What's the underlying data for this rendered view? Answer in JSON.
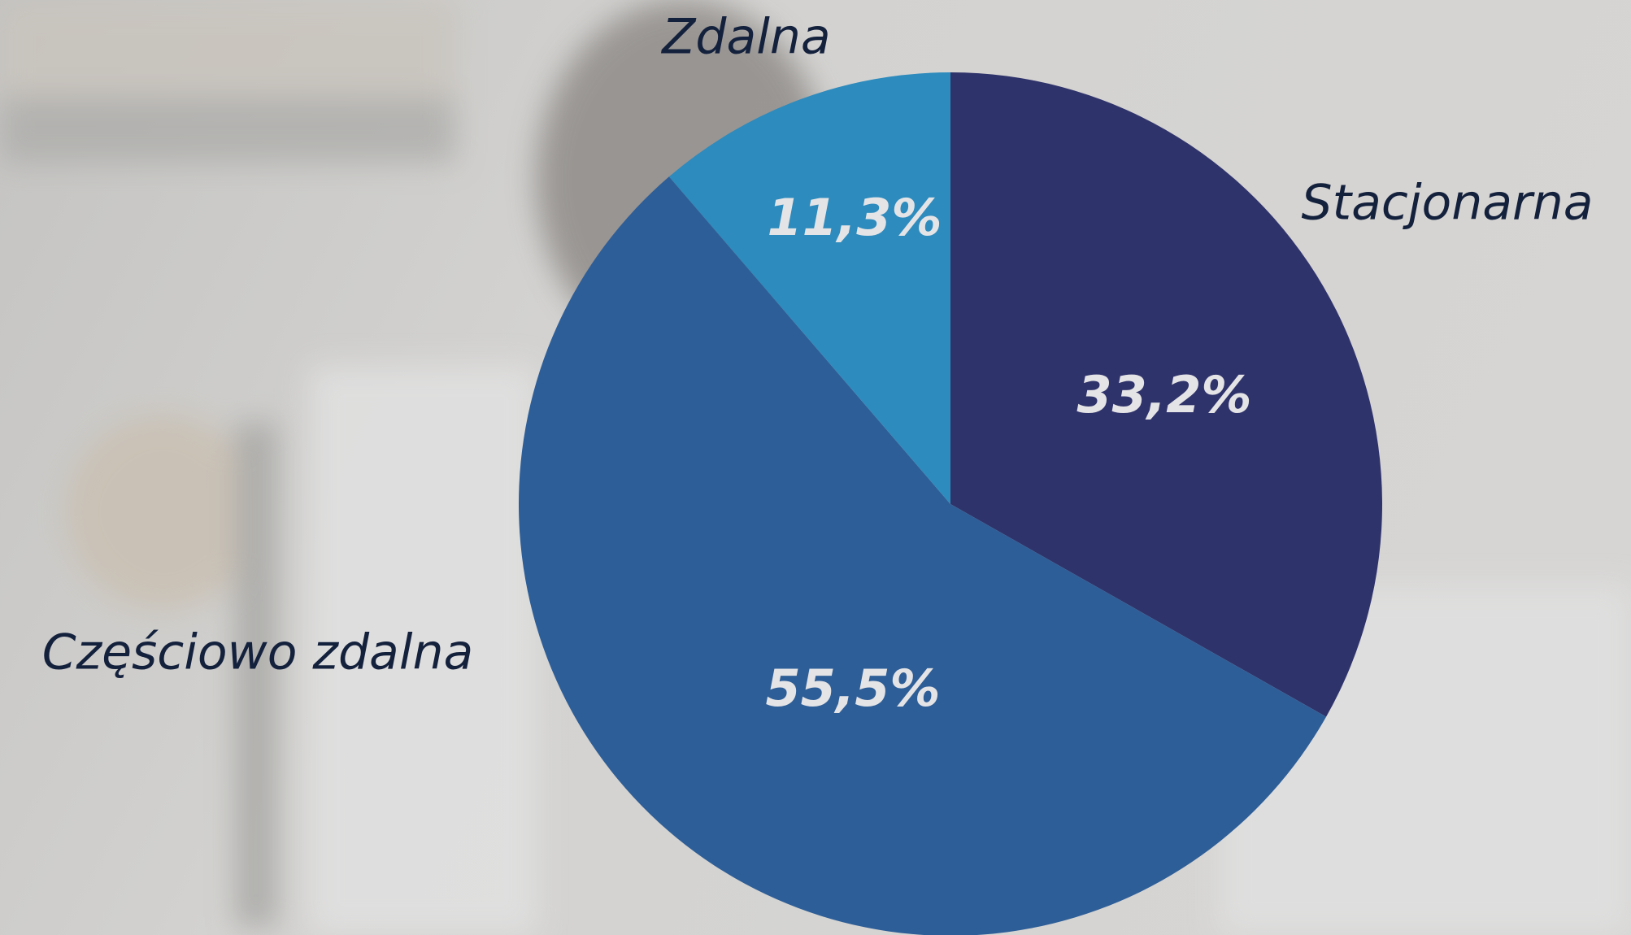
{
  "chart_data": {
    "type": "pie",
    "categories": [
      "Stacjonarna",
      "Częściowo zdalna",
      "Zdalna"
    ],
    "values": [
      33.2,
      55.5,
      11.3
    ],
    "value_labels": [
      "33,2%",
      "55,5%",
      "11,3%"
    ],
    "colors": [
      "#2f336b",
      "#2e5e97",
      "#2d8bbd"
    ]
  }
}
